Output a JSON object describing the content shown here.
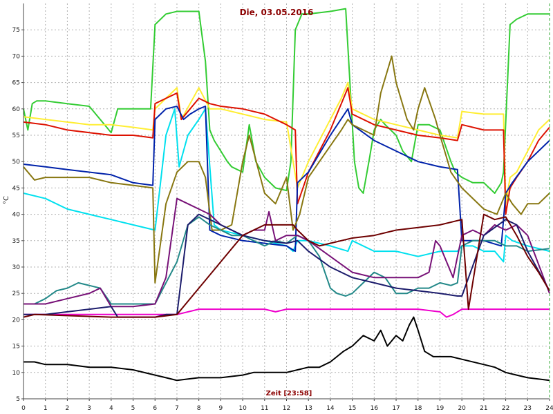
{
  "chart_data": {
    "type": "line",
    "title": "Die, 03.05.2016",
    "xlabel": "Zeit [23:58]",
    "ylabel": "°C",
    "xlim": [
      0,
      24
    ],
    "ylim": [
      5,
      80
    ],
    "xticks": [
      0,
      1,
      2,
      3,
      4,
      5,
      6,
      7,
      8,
      9,
      10,
      11,
      12,
      13,
      14,
      15,
      16,
      17,
      18,
      19,
      20,
      21,
      22,
      23,
      24
    ],
    "yticks": [
      5,
      10,
      15,
      20,
      25,
      30,
      35,
      40,
      45,
      50,
      55,
      60,
      65,
      70,
      75
    ],
    "grid": true,
    "series": [
      {
        "color": "#33cc33",
        "x": [
          0,
          0.2,
          0.4,
          0.6,
          1,
          2,
          3,
          3.5,
          4,
          4.3,
          4.6,
          4.9,
          5.3,
          5.8,
          6,
          6.5,
          7,
          7.5,
          8,
          8.3,
          8.5,
          8.7,
          9,
          9.3,
          9.5,
          10,
          10.3,
          10.6,
          11,
          11.5,
          12,
          12.2,
          12.4,
          12.7,
          13,
          14,
          14.7,
          15.1,
          15.3,
          15.5,
          15.8,
          16,
          16.3,
          16.5,
          17,
          17.3,
          17.7,
          18,
          18.5,
          19,
          19.5,
          19.7,
          20,
          20.5,
          21,
          21.5,
          21.8,
          21.9,
          22.2,
          22.5,
          23,
          23.5,
          24
        ],
        "y": [
          60,
          56,
          61,
          61.5,
          61.5,
          61,
          60.5,
          58,
          55.5,
          60,
          60,
          60,
          60,
          60,
          76,
          78,
          78.5,
          78.5,
          78.5,
          69,
          56,
          54,
          52,
          50,
          49,
          48,
          57,
          50,
          47,
          45,
          44.5,
          50,
          75,
          78,
          78,
          78.5,
          79,
          50,
          45,
          44,
          51,
          56,
          58,
          57,
          55,
          52,
          50,
          57,
          57,
          56,
          50,
          48,
          47,
          46,
          46,
          44,
          46,
          48,
          76,
          77,
          78,
          78,
          78
        ]
      },
      {
        "color": "#ffee33",
        "x": [
          0,
          1,
          2,
          3,
          4,
          5,
          5.9,
          6,
          6.5,
          7,
          7.2,
          7.6,
          8,
          8.5,
          9,
          10,
          11,
          12,
          12.5,
          13,
          14,
          14.5,
          14.8,
          15,
          16,
          17,
          18,
          19,
          19.8,
          20,
          21,
          21.9,
          22,
          22.2,
          22.5,
          23,
          23.5,
          24
        ],
        "y": [
          58.5,
          58,
          57.5,
          57,
          57,
          56.5,
          56,
          60,
          62,
          64,
          58,
          61,
          64,
          60,
          60,
          59,
          58,
          57.5,
          45,
          50,
          58,
          62,
          65,
          60,
          58,
          57,
          56,
          55,
          54.5,
          59.5,
          59,
          59,
          42,
          47,
          48,
          52,
          56,
          58
        ]
      },
      {
        "color": "#dd1100",
        "x": [
          0,
          1,
          2,
          3,
          4,
          5,
          5.9,
          6,
          6.5,
          7,
          7.2,
          7.6,
          8,
          8.5,
          9,
          10,
          11,
          12,
          12.4,
          12.5,
          13,
          14,
          14.5,
          14.8,
          15,
          16,
          17,
          18,
          19,
          19.8,
          20,
          21,
          21.9,
          22,
          22.2,
          22.5,
          23,
          23.5,
          24
        ],
        "y": [
          57.5,
          57,
          56,
          55.5,
          55,
          55,
          54.5,
          61,
          62,
          63,
          58,
          60,
          62,
          61,
          60.5,
          60,
          59,
          57,
          56,
          42,
          48,
          56,
          61,
          64,
          59,
          57,
          56,
          55,
          54.5,
          54,
          57,
          56,
          56,
          40,
          45,
          47,
          50,
          54,
          56.5
        ]
      },
      {
        "color": "#00e0ee",
        "x": [
          0,
          1,
          2,
          3,
          4,
          5,
          6,
          6.5,
          6.9,
          7.1,
          7.5,
          8,
          8.3,
          8.7,
          9,
          10,
          11,
          12,
          12.3,
          12.5,
          13,
          14,
          14.8,
          15,
          16,
          17,
          18,
          19,
          19.8,
          20,
          20.5,
          21,
          21.5,
          21.9,
          22,
          22.3,
          23,
          24
        ],
        "y": [
          44,
          43,
          41,
          40,
          39,
          38,
          37,
          55,
          60,
          49,
          55,
          58,
          60,
          38,
          37,
          36,
          35,
          34,
          33,
          35,
          35,
          34,
          33,
          35,
          33,
          33,
          32,
          33,
          33,
          34,
          34,
          33,
          33,
          31,
          36,
          35,
          34,
          33
        ]
      },
      {
        "color": "#0022aa",
        "x": [
          0,
          1,
          2,
          3,
          4,
          5,
          5.9,
          6,
          6.5,
          7,
          7.3,
          7.6,
          8,
          8.3,
          8.5,
          9,
          10,
          11,
          12,
          12.4,
          12.5,
          13,
          14,
          14.8,
          15,
          16,
          17,
          18,
          19,
          19.8,
          20,
          21,
          21.8,
          22,
          22.3,
          23,
          24
        ],
        "y": [
          49.5,
          49,
          48.5,
          48,
          47.5,
          46,
          45.5,
          58,
          60,
          60.5,
          58,
          59,
          60,
          60.5,
          37,
          36,
          35,
          34.5,
          34,
          33,
          46,
          48,
          55,
          60,
          57,
          54,
          52,
          50,
          49,
          48.5,
          35,
          35,
          34,
          44,
          46,
          50,
          54
        ]
      },
      {
        "color": "#887711",
        "x": [
          0,
          0.5,
          1,
          2,
          3,
          4,
          5,
          5.9,
          6,
          6.5,
          7,
          7.5,
          8,
          8.3,
          8.6,
          9,
          9.5,
          10,
          10.3,
          11,
          11.5,
          12,
          12.3,
          12.6,
          13,
          14,
          14.5,
          14.8,
          15,
          15.5,
          16,
          16.3,
          16.8,
          17,
          17.5,
          17.8,
          18,
          18.3,
          18.8,
          19,
          19.5,
          20,
          21,
          21.6,
          22,
          22.3,
          22.7,
          23,
          23.5,
          24
        ],
        "y": [
          49,
          46.5,
          47,
          47,
          47,
          46,
          45.5,
          45,
          27,
          42,
          48,
          50,
          50,
          47,
          37,
          37,
          38,
          50,
          55,
          44,
          42,
          47,
          37,
          40,
          47,
          53,
          56,
          58,
          57,
          56,
          55,
          63,
          70,
          65,
          58,
          56,
          60,
          64,
          58,
          55,
          48,
          45,
          41,
          40,
          44,
          42,
          40,
          42,
          42,
          44
        ]
      },
      {
        "color": "#228888",
        "x": [
          0,
          0.5,
          1,
          1.5,
          2,
          2.5,
          3,
          3.5,
          4,
          5,
          5.5,
          6,
          6.5,
          7,
          7.5,
          8,
          8.5,
          9,
          9.5,
          10,
          10.5,
          11,
          11.5,
          12,
          12.5,
          13,
          13.5,
          14,
          14.3,
          14.7,
          15,
          15.5,
          16,
          16.5,
          17,
          17.5,
          18,
          18.5,
          19,
          19.5,
          19.8,
          20,
          20.5,
          21,
          21.5,
          22,
          22.5,
          23,
          24
        ],
        "y": [
          23,
          23,
          24,
          25.5,
          26,
          27,
          26.5,
          26,
          23,
          23,
          23,
          23,
          27,
          31,
          38,
          39.5,
          38,
          37,
          36,
          36,
          35,
          34,
          35,
          34.5,
          36,
          35,
          32,
          26,
          25,
          24.5,
          25,
          27,
          29,
          28,
          25,
          25,
          26,
          26,
          27,
          26.5,
          27,
          34,
          35,
          35,
          35,
          34,
          34,
          33,
          33.5
        ]
      },
      {
        "color": "#771177",
        "x": [
          0,
          1,
          2,
          3,
          3.5,
          4,
          5,
          6,
          6.5,
          7,
          7.5,
          8,
          8.5,
          9,
          9.5,
          10,
          10.5,
          11,
          11.2,
          11.5,
          12,
          12.5,
          13,
          14,
          15,
          16,
          17,
          18,
          18.5,
          18.8,
          19,
          19.3,
          19.6,
          20,
          20.5,
          21,
          21.5,
          22,
          22.5,
          23,
          24
        ],
        "y": [
          23,
          23,
          24,
          25,
          26,
          22.5,
          22.5,
          23,
          28,
          43,
          42,
          41,
          40,
          38,
          37,
          36,
          37,
          37,
          40.5,
          35,
          36,
          36,
          35,
          32,
          29,
          28,
          28,
          28,
          29,
          35,
          34,
          31,
          28,
          36,
          37,
          36,
          38,
          37,
          38,
          36,
          25
        ]
      },
      {
        "color": "#000000",
        "x": [
          0,
          0.5,
          1,
          2,
          3,
          4,
          5,
          6,
          6.5,
          7,
          8,
          9,
          10,
          10.5,
          11,
          12,
          12.5,
          13,
          13.5,
          14,
          14.3,
          14.6,
          15,
          15.5,
          16,
          16.3,
          16.6,
          17,
          17.3,
          17.6,
          17.8,
          18,
          18.3,
          18.7,
          19,
          19.5,
          20,
          21,
          21.5,
          22,
          22.5,
          23,
          24
        ],
        "y": [
          12,
          12,
          11.5,
          11.5,
          11,
          11,
          10.5,
          9.5,
          9,
          8.5,
          9,
          9,
          9.5,
          10,
          10,
          10,
          10.5,
          11,
          11,
          12,
          13,
          14,
          15,
          17,
          16,
          18,
          15,
          17,
          16,
          19,
          20.5,
          18,
          14,
          13,
          13,
          13,
          12.5,
          11.5,
          11,
          10,
          9.5,
          9,
          8.5
        ]
      },
      {
        "color": "#ee00cc",
        "x": [
          0,
          1,
          2,
          3,
          4,
          5,
          6,
          7,
          8,
          9,
          10,
          11,
          11.5,
          12,
          13,
          14,
          15,
          16,
          17,
          18,
          19,
          19.3,
          19.6,
          20,
          21,
          22,
          23,
          24
        ],
        "y": [
          21,
          21,
          21,
          21,
          21,
          21,
          21,
          21,
          22,
          22,
          22,
          22,
          21.5,
          22,
          22,
          22,
          22,
          22,
          22,
          22,
          21.5,
          20.5,
          21,
          22,
          22,
          22,
          22,
          22
        ]
      },
      {
        "color": "#1c1c6c",
        "x": [
          0,
          1,
          2,
          3,
          4,
          4.3,
          5,
          6,
          6.5,
          7,
          7.5,
          8,
          9,
          10,
          11,
          12,
          12.5,
          13,
          14,
          15,
          16,
          17,
          18,
          19,
          19.8,
          20,
          21,
          22,
          22.5,
          23,
          24
        ],
        "y": [
          21,
          21,
          21.5,
          22,
          22.5,
          20.5,
          20.5,
          20.5,
          21,
          21,
          38,
          40,
          38,
          36,
          35,
          34.5,
          35,
          33,
          30,
          28,
          27,
          26,
          25.5,
          25,
          24.5,
          24.5,
          36,
          39,
          38,
          33,
          25.5
        ]
      },
      {
        "color": "#6e0000",
        "x": [
          0,
          0.5,
          4,
          5,
          6,
          7,
          8,
          9,
          10,
          11,
          12,
          12.3,
          12.5,
          13,
          13.5,
          15,
          16,
          17,
          18,
          19,
          20,
          20.3,
          21,
          21.5,
          22,
          22.5,
          23,
          23.5,
          24
        ],
        "y": [
          20.5,
          21,
          20.5,
          20.5,
          20.5,
          21,
          26,
          31,
          36,
          38,
          38,
          38,
          37,
          35,
          34,
          35.5,
          36,
          37,
          37.5,
          38,
          39,
          22,
          40,
          39,
          39.5,
          36,
          32,
          29,
          25.5
        ]
      }
    ]
  }
}
